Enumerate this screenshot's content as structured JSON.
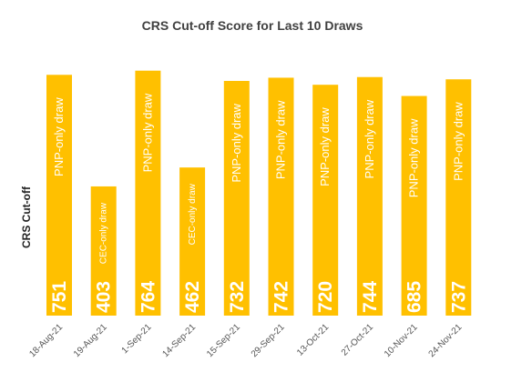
{
  "chart_data": {
    "type": "bar",
    "title": "CRS Cut-off Score for Last 10 Draws",
    "ylabel": "CRS Cut-off",
    "xlabel": "",
    "categories": [
      "18-Aug-21",
      "19-Aug-21",
      "1-Sep-21",
      "14-Sep-21",
      "15-Sep-21",
      "29-Sep-21",
      "13-Oct-21",
      "27-Oct-21",
      "10-Nov-21",
      "24-Nov-21"
    ],
    "values": [
      751,
      403,
      764,
      462,
      732,
      742,
      720,
      744,
      685,
      737
    ],
    "annotations": [
      "PNP-only draw",
      "CEC-only draw",
      "PNP-only draw",
      "CEC-only draw",
      "PNP-only draw",
      "PNP-only draw",
      "PNP-only draw",
      "PNP-only draw",
      "PNP-only draw",
      "PNP-only draw"
    ],
    "ylim": [
      0,
      800
    ],
    "grid": false,
    "legend": "none",
    "colors": {
      "bar": "#ffc000",
      "value_text": "#ffffff"
    }
  }
}
